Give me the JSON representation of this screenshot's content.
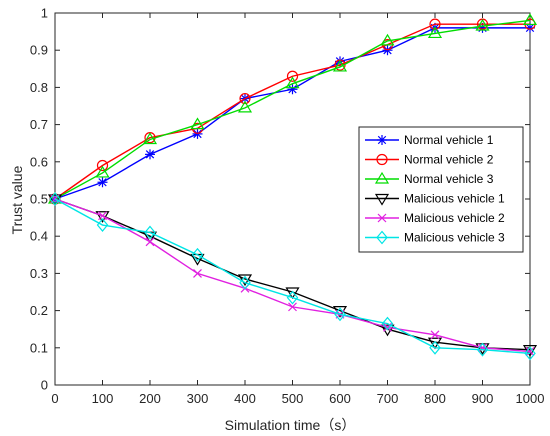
{
  "chart_data": {
    "type": "line",
    "xlabel": "Simulation time（s）",
    "ylabel": "Trust value",
    "xlim": [
      0,
      1000
    ],
    "ylim": [
      0,
      1
    ],
    "xticks": [
      0,
      100,
      200,
      300,
      400,
      500,
      600,
      700,
      800,
      900,
      1000
    ],
    "yticks": [
      0,
      0.1,
      0.2,
      0.3,
      0.4,
      0.5,
      0.6,
      0.7,
      0.8,
      0.9,
      1
    ],
    "ytick_labels": [
      "0",
      "0.1",
      "0.2",
      "0.3",
      "0.4",
      "0.5",
      "0.6",
      "0.7",
      "0.8",
      "0.9",
      "1"
    ],
    "grid": false,
    "legend_position": "right",
    "x": [
      0,
      100,
      200,
      300,
      400,
      500,
      600,
      700,
      800,
      900,
      1000
    ],
    "series": [
      {
        "name": "Normal vehicle 1",
        "color": "#0000ff",
        "marker": "asterisk",
        "values": [
          0.5,
          0.545,
          0.62,
          0.675,
          0.77,
          0.795,
          0.87,
          0.9,
          0.96,
          0.96,
          0.96
        ]
      },
      {
        "name": "Normal vehicle 2",
        "color": "#ff0000",
        "marker": "circle",
        "values": [
          0.5,
          0.59,
          0.665,
          0.69,
          0.77,
          0.83,
          0.86,
          0.915,
          0.97,
          0.97,
          0.97
        ]
      },
      {
        "name": "Normal vehicle 3",
        "color": "#00dd00",
        "marker": "triangle-up",
        "values": [
          0.5,
          0.57,
          0.66,
          0.7,
          0.745,
          0.81,
          0.855,
          0.925,
          0.945,
          0.965,
          0.98
        ]
      },
      {
        "name": "Malicious vehicle 1",
        "color": "#000000",
        "marker": "triangle-down",
        "values": [
          0.5,
          0.455,
          0.4,
          0.34,
          0.285,
          0.25,
          0.2,
          0.15,
          0.115,
          0.1,
          0.095
        ]
      },
      {
        "name": "Malicious vehicle 2",
        "color": "#e020e0",
        "marker": "x",
        "values": [
          0.5,
          0.455,
          0.385,
          0.3,
          0.26,
          0.21,
          0.19,
          0.155,
          0.135,
          0.1,
          0.09
        ]
      },
      {
        "name": "Malicious vehicle 3",
        "color": "#00e5e5",
        "marker": "diamond",
        "values": [
          0.5,
          0.43,
          0.41,
          0.35,
          0.275,
          0.235,
          0.19,
          0.165,
          0.1,
          0.095,
          0.085
        ]
      }
    ]
  }
}
